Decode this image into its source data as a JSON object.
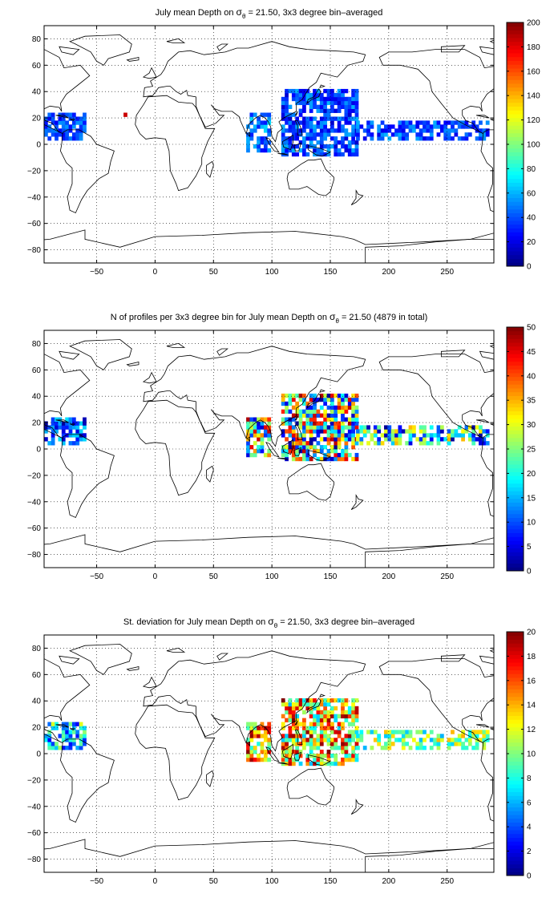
{
  "figure": {
    "background": "#ffffff",
    "land_outline_color": "#000000",
    "grid_color": "#000000",
    "colormap": "jet"
  },
  "chart_data": [
    {
      "type": "heatmap",
      "title_parts": {
        "before": "July mean Depth on ",
        "symbol": "σ",
        "sub": "θ",
        "after": " = 21.50, 3x3 degree bin–averaged"
      },
      "xlabel": "",
      "ylabel": "",
      "xlim": [
        -95,
        290
      ],
      "ylim": [
        -90,
        90
      ],
      "x_ticks": [
        -50,
        0,
        50,
        100,
        150,
        200,
        250
      ],
      "y_ticks": [
        -80,
        -60,
        -40,
        -20,
        0,
        20,
        40,
        60,
        80
      ],
      "grid": true,
      "colorbar": {
        "min": 0,
        "max": 200,
        "ticks": [
          0,
          20,
          40,
          60,
          80,
          100,
          120,
          140,
          160,
          180,
          200
        ]
      },
      "bin_size_deg": 3,
      "regions": [
        {
          "name": "Caribbean",
          "lon": [
            -95,
            -60
          ],
          "lat": [
            3,
            24
          ],
          "vmin": 20,
          "vmax": 55,
          "density": 0.7
        },
        {
          "name": "Atlantic spot",
          "lon": [
            -27,
            -24
          ],
          "lat": [
            21,
            24
          ],
          "vmin": 170,
          "vmax": 190,
          "density": 1
        },
        {
          "name": "Bay of Bengal",
          "lon": [
            78,
            98
          ],
          "lat": [
            -6,
            24
          ],
          "vmin": 25,
          "vmax": 70,
          "density": 0.75
        },
        {
          "name": "Western Pacific",
          "lon": [
            108,
            172
          ],
          "lat": [
            -9,
            42
          ],
          "vmin": 15,
          "vmax": 60,
          "density": 0.75
        },
        {
          "name": "Central Pacific",
          "lon": [
            172,
            285
          ],
          "lat": [
            3,
            18
          ],
          "vmin": 20,
          "vmax": 60,
          "density": 0.6
        }
      ]
    },
    {
      "type": "heatmap",
      "title_parts": {
        "before": "N of profiles per 3x3 degree bin for July mean Depth on ",
        "symbol": "σ",
        "sub": "θ",
        "after": " = 21.50 (4879 in total)"
      },
      "xlabel": "",
      "ylabel": "",
      "xlim": [
        -95,
        290
      ],
      "ylim": [
        -90,
        90
      ],
      "x_ticks": [
        -50,
        0,
        50,
        100,
        150,
        200,
        250
      ],
      "y_ticks": [
        -80,
        -60,
        -40,
        -20,
        0,
        20,
        40,
        60,
        80
      ],
      "grid": true,
      "colorbar": {
        "min": 0,
        "max": 50,
        "ticks": [
          0,
          5,
          10,
          15,
          20,
          25,
          30,
          35,
          40,
          45,
          50
        ]
      },
      "total_profiles": 4879,
      "bin_size_deg": 3,
      "regions": [
        {
          "name": "Caribbean",
          "lon": [
            -95,
            -60
          ],
          "lat": [
            3,
            24
          ],
          "vmin": 1,
          "vmax": 18,
          "density": 0.7
        },
        {
          "name": "Bay of Bengal",
          "lon": [
            78,
            98
          ],
          "lat": [
            -6,
            24
          ],
          "vmin": 2,
          "vmax": 48,
          "density": 0.75
        },
        {
          "name": "Western Pacific",
          "lon": [
            108,
            172
          ],
          "lat": [
            -9,
            42
          ],
          "vmin": 1,
          "vmax": 48,
          "density": 0.75
        },
        {
          "name": "Central Pacific",
          "lon": [
            172,
            285
          ],
          "lat": [
            3,
            18
          ],
          "vmin": 1,
          "vmax": 35,
          "density": 0.6
        }
      ]
    },
    {
      "type": "heatmap",
      "title_parts": {
        "before": "St. deviation for July mean Depth on ",
        "symbol": "σ",
        "sub": "θ",
        "after": " = 21.50, 3x3 degree bin–averaged"
      },
      "xlabel": "",
      "ylabel": "",
      "xlim": [
        -95,
        290
      ],
      "ylim": [
        -90,
        90
      ],
      "x_ticks": [
        -50,
        0,
        50,
        100,
        150,
        200,
        250
      ],
      "y_ticks": [
        -80,
        -60,
        -40,
        -20,
        0,
        20,
        40,
        60,
        80
      ],
      "grid": true,
      "colorbar": {
        "min": 0,
        "max": 20,
        "ticks": [
          0,
          2,
          4,
          6,
          8,
          10,
          12,
          14,
          16,
          18,
          20
        ]
      },
      "bin_size_deg": 3,
      "regions": [
        {
          "name": "Caribbean",
          "lon": [
            -95,
            -60
          ],
          "lat": [
            3,
            24
          ],
          "vmin": 2,
          "vmax": 12,
          "density": 0.7
        },
        {
          "name": "Bay of Bengal",
          "lon": [
            78,
            98
          ],
          "lat": [
            -6,
            24
          ],
          "vmin": 8,
          "vmax": 20,
          "density": 0.75
        },
        {
          "name": "Western Pacific",
          "lon": [
            108,
            172
          ],
          "lat": [
            -9,
            42
          ],
          "vmin": 6,
          "vmax": 20,
          "density": 0.75
        },
        {
          "name": "Central Pacific",
          "lon": [
            172,
            285
          ],
          "lat": [
            3,
            18
          ],
          "vmin": 6,
          "vmax": 14,
          "density": 0.6
        }
      ]
    }
  ]
}
